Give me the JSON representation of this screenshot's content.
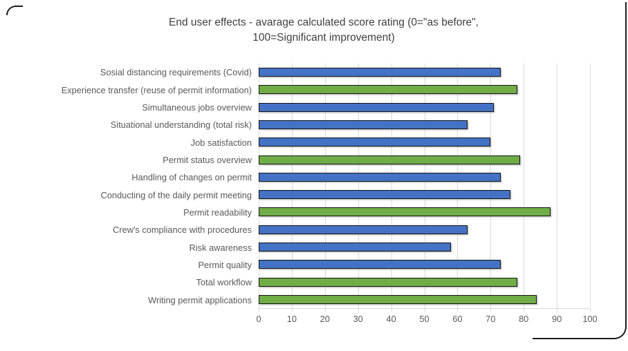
{
  "header": {
    "title_line1": "End user effects - avarage calculated score rating (0=\"as before\",",
    "title_line2": "100=Significant improvement)"
  },
  "chart_data": {
    "type": "bar",
    "orientation": "horizontal",
    "title": "End user effects - avarage calculated score rating (0=\"as before\", 100=Significant improvement)",
    "categories": [
      "Sosial distancing requirements (Covid)",
      "Experience transfer (reuse of permit information)",
      "Simultaneous jobs overview",
      "Situational understanding (total risk)",
      "Job satisfaction",
      "Permit status overview",
      "Handling of changes on permit",
      "Conducting of the daily permit meeting",
      "Permit readability",
      "Crew's compliance with procedures",
      "Risk awareness",
      "Permit quality",
      "Total workflow",
      "Writing permit applications"
    ],
    "values": [
      73,
      78,
      71,
      63,
      70,
      79,
      73,
      76,
      88,
      63,
      58,
      73,
      78,
      84
    ],
    "bar_colors": [
      "#4472C4",
      "#70AD47",
      "#4472C4",
      "#4472C4",
      "#4472C4",
      "#70AD47",
      "#4472C4",
      "#4472C4",
      "#70AD47",
      "#4472C4",
      "#4472C4",
      "#4472C4",
      "#70AD47",
      "#70AD47"
    ],
    "color_legend": {
      "blue": "#4472C4",
      "green": "#70AD47"
    },
    "bar_border_color": "#141414",
    "grid_color": "#d9d9d9",
    "text_color": "#595959",
    "xlabel": "",
    "ylabel": "",
    "xlim": [
      0,
      100
    ],
    "xticks": [
      0,
      10,
      20,
      30,
      40,
      50,
      60,
      70,
      80,
      90,
      100
    ],
    "grid": "vertical",
    "legend_position": "none"
  }
}
